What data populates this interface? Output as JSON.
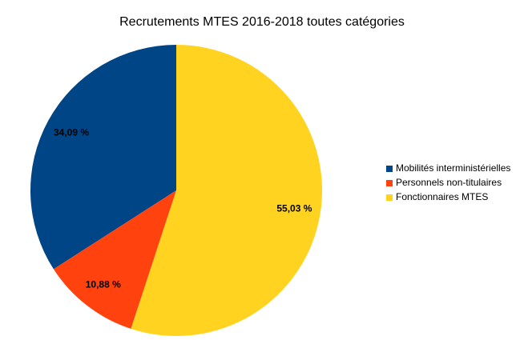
{
  "chart_data": {
    "type": "pie",
    "title": "Recrutements MTES 2016-2018 toutes catégories",
    "categories": [
      "Mobilités interministérielles",
      "Personnels non-titulaires",
      "Fonctionnaires MTES"
    ],
    "values": [
      34.09,
      10.88,
      55.03
    ],
    "value_labels": [
      "34,09 %",
      "10,88 %",
      "55,03 %"
    ],
    "colors": [
      "#004586",
      "#ff420e",
      "#ffd320"
    ],
    "legend": "right"
  }
}
